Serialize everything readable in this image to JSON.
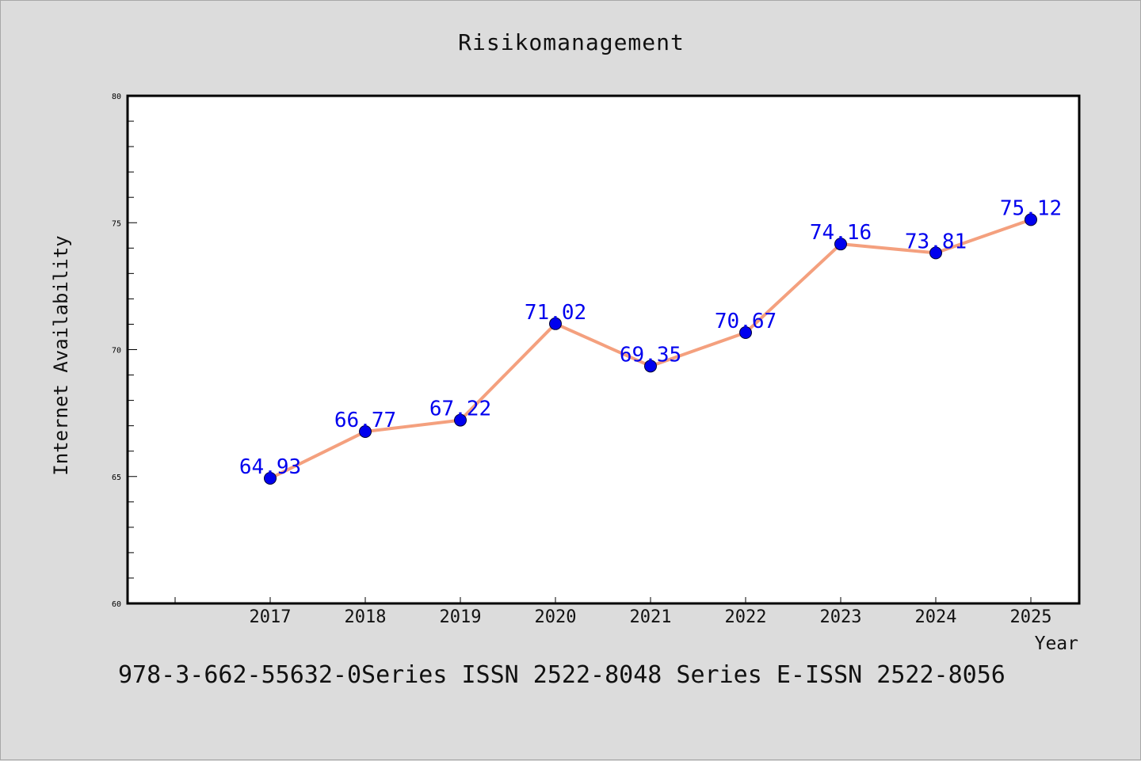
{
  "chart_data": {
    "type": "line",
    "title": "Risikomanagement",
    "xlabel": "Year",
    "ylabel": "Internet Availability",
    "categories": [
      "2017",
      "2018",
      "2019",
      "2020",
      "2021",
      "2022",
      "2023",
      "2024",
      "2025"
    ],
    "series": [
      {
        "values": [
          64.93,
          66.77,
          67.22,
          71.02,
          69.35,
          70.67,
          74.16,
          73.81,
          75.12
        ]
      }
    ],
    "data_labels": [
      "64.93",
      "66.77",
      "67.22",
      "71.02",
      "69.35",
      "70.67",
      "74.16",
      "73.81",
      "75.12"
    ],
    "ylim": [
      60,
      80
    ],
    "yticks": [
      "60",
      "65",
      "70",
      "75",
      "80"
    ],
    "grid": false,
    "colors": {
      "line": "#f4a07e",
      "marker": "#0000ee",
      "label": "#0000ee",
      "frame": "#000000",
      "plot_bg": "#ffffff",
      "page_bg": "#dcdcdc"
    }
  },
  "footer": {
    "text": "978-3-662-55632-0Series ISSN 2522-8048 Series E-ISSN 2522-8056"
  }
}
